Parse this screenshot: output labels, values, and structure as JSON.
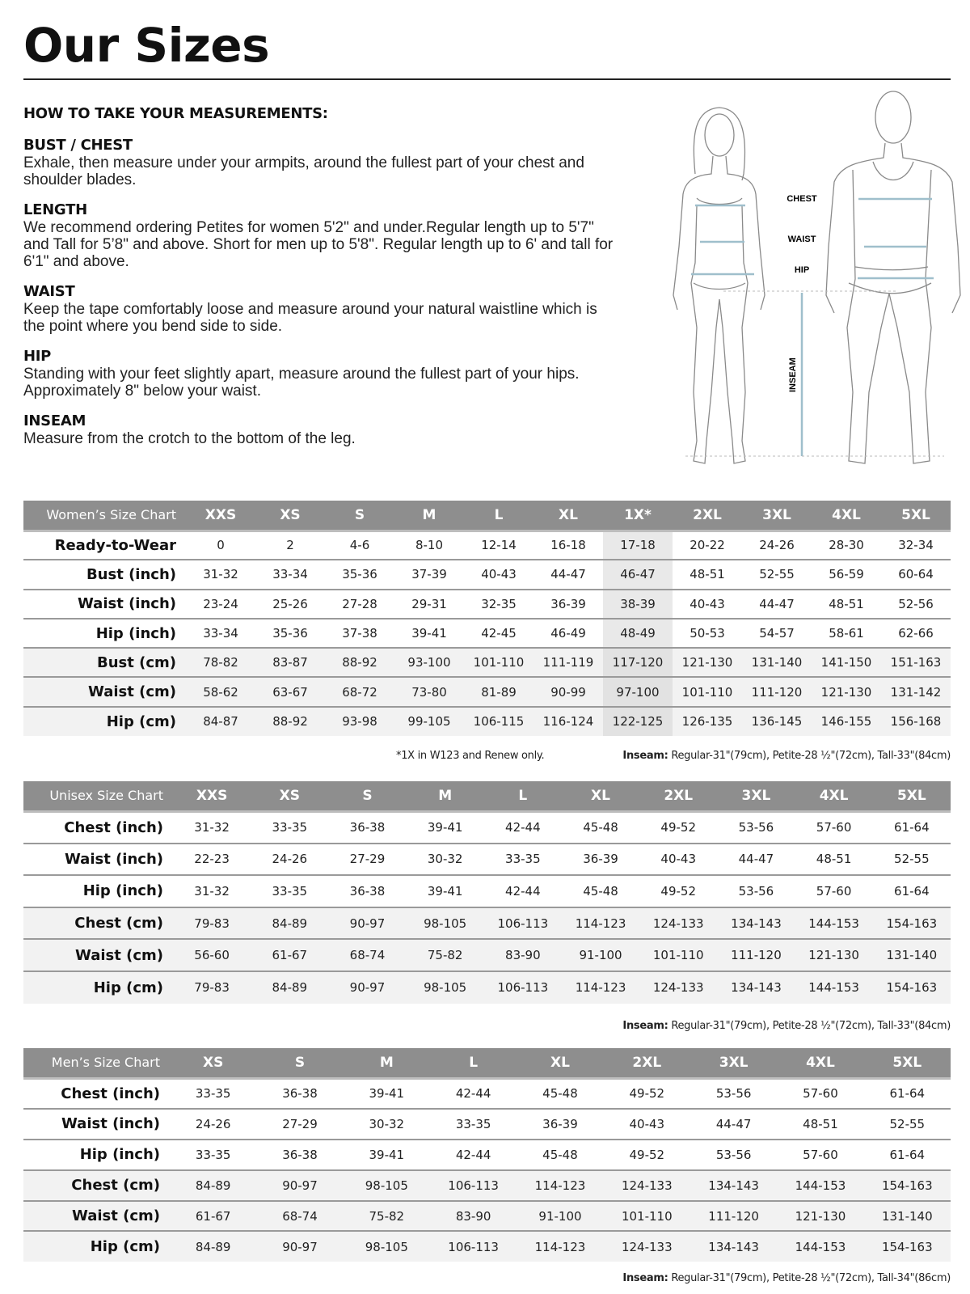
{
  "title": "Our Sizes",
  "instructions": {
    "heading": "HOW TO TAKE YOUR MEASUREMENTS:",
    "sections": [
      {
        "title": "BUST / CHEST",
        "text": "Exhale, then measure under your armpits, around the fullest part of your chest and shoulder blades."
      },
      {
        "title": "LENGTH",
        "text": "We recommend ordering Petites for women 5'2\" and under.Regular length up to 5'7\" and Tall for 5’8\" and above. Short for men up to 5'8\". Regular length up to 6' and tall for 6'1\" and above."
      },
      {
        "title": "WAIST",
        "text": "Keep the tape comfortably loose and measure around your natural waistline which is the point where you bend side to side."
      },
      {
        "title": "HIP",
        "text": "Standing with your feet slightly apart, measure around the fullest part of your hips. Approximately 8\" below your waist."
      },
      {
        "title": "INSEAM",
        "text": "Measure from the crotch to the bottom of the leg."
      }
    ]
  },
  "figure": {
    "labels": {
      "chest": "CHEST",
      "waist": "WAIST",
      "hip": "HIP",
      "inseam": "INSEAM"
    },
    "line_color": "#9fbfcc"
  },
  "women": {
    "title": "Women’s Size Chart",
    "sizes": [
      "XXS",
      "XS",
      "S",
      "M",
      "L",
      "XL",
      "1X*",
      "2XL",
      "3XL",
      "4XL",
      "5XL"
    ],
    "highlight_size": "1X*",
    "rows": [
      {
        "label": "Ready-to-Wear",
        "unit": "inch",
        "values": [
          "0",
          "2",
          "4-6",
          "8-10",
          "12-14",
          "16-18",
          "17-18",
          "20-22",
          "24-26",
          "28-30",
          "32-34"
        ]
      },
      {
        "label": "Bust (inch)",
        "unit": "inch",
        "values": [
          "31-32",
          "33-34",
          "35-36",
          "37-39",
          "40-43",
          "44-47",
          "46-47",
          "48-51",
          "52-55",
          "56-59",
          "60-64"
        ]
      },
      {
        "label": "Waist (inch)",
        "unit": "inch",
        "values": [
          "23-24",
          "25-26",
          "27-28",
          "29-31",
          "32-35",
          "36-39",
          "38-39",
          "40-43",
          "44-47",
          "48-51",
          "52-56"
        ]
      },
      {
        "label": "Hip (inch)",
        "unit": "inch",
        "values": [
          "33-34",
          "35-36",
          "37-38",
          "39-41",
          "42-45",
          "46-49",
          "48-49",
          "50-53",
          "54-57",
          "58-61",
          "62-66"
        ]
      },
      {
        "label": "Bust (cm)",
        "unit": "cm",
        "values": [
          "78-82",
          "83-87",
          "88-92",
          "93-100",
          "101-110",
          "111-119",
          "117-120",
          "121-130",
          "131-140",
          "141-150",
          "151-163"
        ]
      },
      {
        "label": "Waist (cm)",
        "unit": "cm",
        "values": [
          "58-62",
          "63-67",
          "68-72",
          "73-80",
          "81-89",
          "90-99",
          "97-100",
          "101-110",
          "111-120",
          "121-130",
          "131-142"
        ]
      },
      {
        "label": "Hip (cm)",
        "unit": "cm",
        "values": [
          "84-87",
          "88-92",
          "93-98",
          "99-105",
          "106-115",
          "116-124",
          "122-125",
          "126-135",
          "136-145",
          "146-155",
          "156-168"
        ]
      }
    ],
    "footnote": "*1X in W123 and Renew only.",
    "inseam_label": "Inseam:",
    "inseam_text": " Regular-31\"(79cm), Petite-28 ½\"(72cm), Tall-33\"(84cm)"
  },
  "unisex": {
    "title": "Unisex Size Chart",
    "sizes": [
      "XXS",
      "XS",
      "S",
      "M",
      "L",
      "XL",
      "2XL",
      "3XL",
      "4XL",
      "5XL"
    ],
    "rows": [
      {
        "label": "Chest (inch)",
        "unit": "inch",
        "values": [
          "31-32",
          "33-35",
          "36-38",
          "39-41",
          "42-44",
          "45-48",
          "49-52",
          "53-56",
          "57-60",
          "61-64"
        ]
      },
      {
        "label": "Waist (inch)",
        "unit": "inch",
        "values": [
          "22-23",
          "24-26",
          "27-29",
          "30-32",
          "33-35",
          "36-39",
          "40-43",
          "44-47",
          "48-51",
          "52-55"
        ]
      },
      {
        "label": "Hip (inch)",
        "unit": "inch",
        "values": [
          "31-32",
          "33-35",
          "36-38",
          "39-41",
          "42-44",
          "45-48",
          "49-52",
          "53-56",
          "57-60",
          "61-64"
        ]
      },
      {
        "label": "Chest (cm)",
        "unit": "cm",
        "values": [
          "79-83",
          "84-89",
          "90-97",
          "98-105",
          "106-113",
          "114-123",
          "124-133",
          "134-143",
          "144-153",
          "154-163"
        ]
      },
      {
        "label": "Waist (cm)",
        "unit": "cm",
        "values": [
          "56-60",
          "61-67",
          "68-74",
          "75-82",
          "83-90",
          "91-100",
          "101-110",
          "111-120",
          "121-130",
          "131-140"
        ]
      },
      {
        "label": "Hip (cm)",
        "unit": "cm",
        "values": [
          "79-83",
          "84-89",
          "90-97",
          "98-105",
          "106-113",
          "114-123",
          "124-133",
          "134-143",
          "144-153",
          "154-163"
        ]
      }
    ],
    "inseam_label": "Inseam:",
    "inseam_text": " Regular-31\"(79cm), Petite-28 ½\"(72cm), Tall-33\"(84cm)"
  },
  "men": {
    "title": "Men’s Size Chart",
    "sizes": [
      "XS",
      "S",
      "M",
      "L",
      "XL",
      "2XL",
      "3XL",
      "4XL",
      "5XL"
    ],
    "rows": [
      {
        "label": "Chest (inch)",
        "unit": "inch",
        "values": [
          "33-35",
          "36-38",
          "39-41",
          "42-44",
          "45-48",
          "49-52",
          "53-56",
          "57-60",
          "61-64"
        ]
      },
      {
        "label": "Waist (inch)",
        "unit": "inch",
        "values": [
          "24-26",
          "27-29",
          "30-32",
          "33-35",
          "36-39",
          "40-43",
          "44-47",
          "48-51",
          "52-55"
        ]
      },
      {
        "label": "Hip (inch)",
        "unit": "inch",
        "values": [
          "33-35",
          "36-38",
          "39-41",
          "42-44",
          "45-48",
          "49-52",
          "53-56",
          "57-60",
          "61-64"
        ]
      },
      {
        "label": "Chest (cm)",
        "unit": "cm",
        "values": [
          "84-89",
          "90-97",
          "98-105",
          "106-113",
          "114-123",
          "124-133",
          "134-143",
          "144-153",
          "154-163"
        ]
      },
      {
        "label": "Waist (cm)",
        "unit": "cm",
        "values": [
          "61-67",
          "68-74",
          "75-82",
          "83-90",
          "91-100",
          "101-110",
          "111-120",
          "121-130",
          "131-140"
        ]
      },
      {
        "label": "Hip (cm)",
        "unit": "cm",
        "values": [
          "84-89",
          "90-97",
          "98-105",
          "106-113",
          "114-123",
          "124-133",
          "134-143",
          "144-153",
          "154-163"
        ]
      }
    ],
    "inseam_label": "Inseam:",
    "inseam_text": " Regular-31\"(79cm), Petite-28 ½\"(72cm), Tall-34\"(86cm)"
  }
}
